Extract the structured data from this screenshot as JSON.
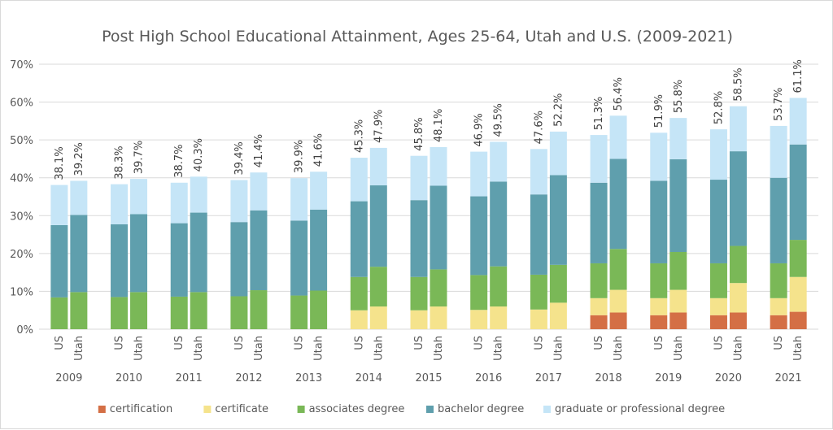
{
  "chart_data": {
    "type": "stacked-bar",
    "title": "Post High School Educational Attainment, Ages 25-64, Utah and U.S. (2009-2021)",
    "ylim": [
      0,
      70
    ],
    "yticks": [
      0,
      10,
      20,
      30,
      40,
      50,
      60,
      70
    ],
    "ytick_labels": [
      "0%",
      "10%",
      "20%",
      "30%",
      "40%",
      "50%",
      "60%",
      "70%"
    ],
    "grid": true,
    "legend_position": "bottom",
    "years": [
      "2009",
      "2010",
      "2011",
      "2012",
      "2013",
      "2014",
      "2015",
      "2016",
      "2017",
      "2018",
      "2019",
      "2020",
      "2021"
    ],
    "regions": [
      "US",
      "Utah"
    ],
    "series": [
      {
        "name": "certification",
        "color": "#d46f45",
        "values": [
          [
            0,
            0
          ],
          [
            0,
            0
          ],
          [
            0,
            0
          ],
          [
            0,
            0
          ],
          [
            0,
            0
          ],
          [
            0,
            0
          ],
          [
            0,
            0
          ],
          [
            0,
            0
          ],
          [
            0,
            0
          ],
          [
            3.7,
            4.4
          ],
          [
            3.7,
            4.4
          ],
          [
            3.7,
            4.4
          ],
          [
            3.7,
            4.6
          ]
        ]
      },
      {
        "name": "certificate",
        "color": "#f5e38c",
        "values": [
          [
            0,
            0
          ],
          [
            0,
            0
          ],
          [
            0,
            0
          ],
          [
            0,
            0
          ],
          [
            0,
            0
          ],
          [
            5.0,
            6.0
          ],
          [
            5.0,
            6.0
          ],
          [
            5.1,
            6.0
          ],
          [
            5.2,
            7.0
          ],
          [
            4.5,
            6.0
          ],
          [
            4.5,
            6.0
          ],
          [
            4.5,
            7.8
          ],
          [
            4.5,
            9.2
          ]
        ]
      },
      {
        "name": "associates degree",
        "color": "#7ab857",
        "values": [
          [
            8.4,
            9.8
          ],
          [
            8.5,
            9.8
          ],
          [
            8.6,
            9.8
          ],
          [
            8.7,
            10.3
          ],
          [
            8.9,
            10.2
          ],
          [
            8.8,
            10.5
          ],
          [
            8.8,
            9.8
          ],
          [
            9.2,
            10.6
          ],
          [
            9.2,
            10.0
          ],
          [
            9.2,
            10.8
          ],
          [
            9.2,
            10.0
          ],
          [
            9.2,
            9.8
          ],
          [
            9.2,
            9.8
          ]
        ]
      },
      {
        "name": "bachelor degree",
        "color": "#5f9fad",
        "values": [
          [
            19.1,
            20.4
          ],
          [
            19.2,
            20.6
          ],
          [
            19.4,
            21.0
          ],
          [
            19.6,
            21.1
          ],
          [
            19.8,
            21.4
          ],
          [
            20.0,
            21.5
          ],
          [
            20.3,
            22.1
          ],
          [
            20.8,
            22.4
          ],
          [
            21.2,
            23.7
          ],
          [
            21.3,
            23.8
          ],
          [
            21.8,
            24.5
          ],
          [
            22.1,
            25.0
          ],
          [
            22.6,
            25.2
          ]
        ]
      },
      {
        "name": "graduate or professional degree",
        "color": "#c5e5f7",
        "values": [
          [
            10.6,
            9.0
          ],
          [
            10.6,
            9.3
          ],
          [
            10.7,
            9.5
          ],
          [
            11.1,
            10.0
          ],
          [
            11.2,
            10.0
          ],
          [
            11.5,
            9.9
          ],
          [
            11.7,
            10.2
          ],
          [
            11.8,
            10.5
          ],
          [
            12.0,
            11.5
          ],
          [
            12.6,
            11.4
          ],
          [
            12.7,
            10.9
          ],
          [
            13.3,
            11.9
          ],
          [
            13.7,
            12.3
          ]
        ]
      }
    ],
    "totals": [
      [
        "38.1%",
        "39.2%"
      ],
      [
        "38.3%",
        "39.7%"
      ],
      [
        "38.7%",
        "40.3%"
      ],
      [
        "39.4%",
        "41.4%"
      ],
      [
        "39.9%",
        "41.6%"
      ],
      [
        "45.3%",
        "47.9%"
      ],
      [
        "45.8%",
        "48.1%"
      ],
      [
        "46.9%",
        "49.5%"
      ],
      [
        "47.6%",
        "52.2%"
      ],
      [
        "51.3%",
        "56.4%"
      ],
      [
        "51.9%",
        "55.8%"
      ],
      [
        "52.8%",
        "58.5%"
      ],
      [
        "53.7%",
        "61.1%"
      ]
    ]
  }
}
